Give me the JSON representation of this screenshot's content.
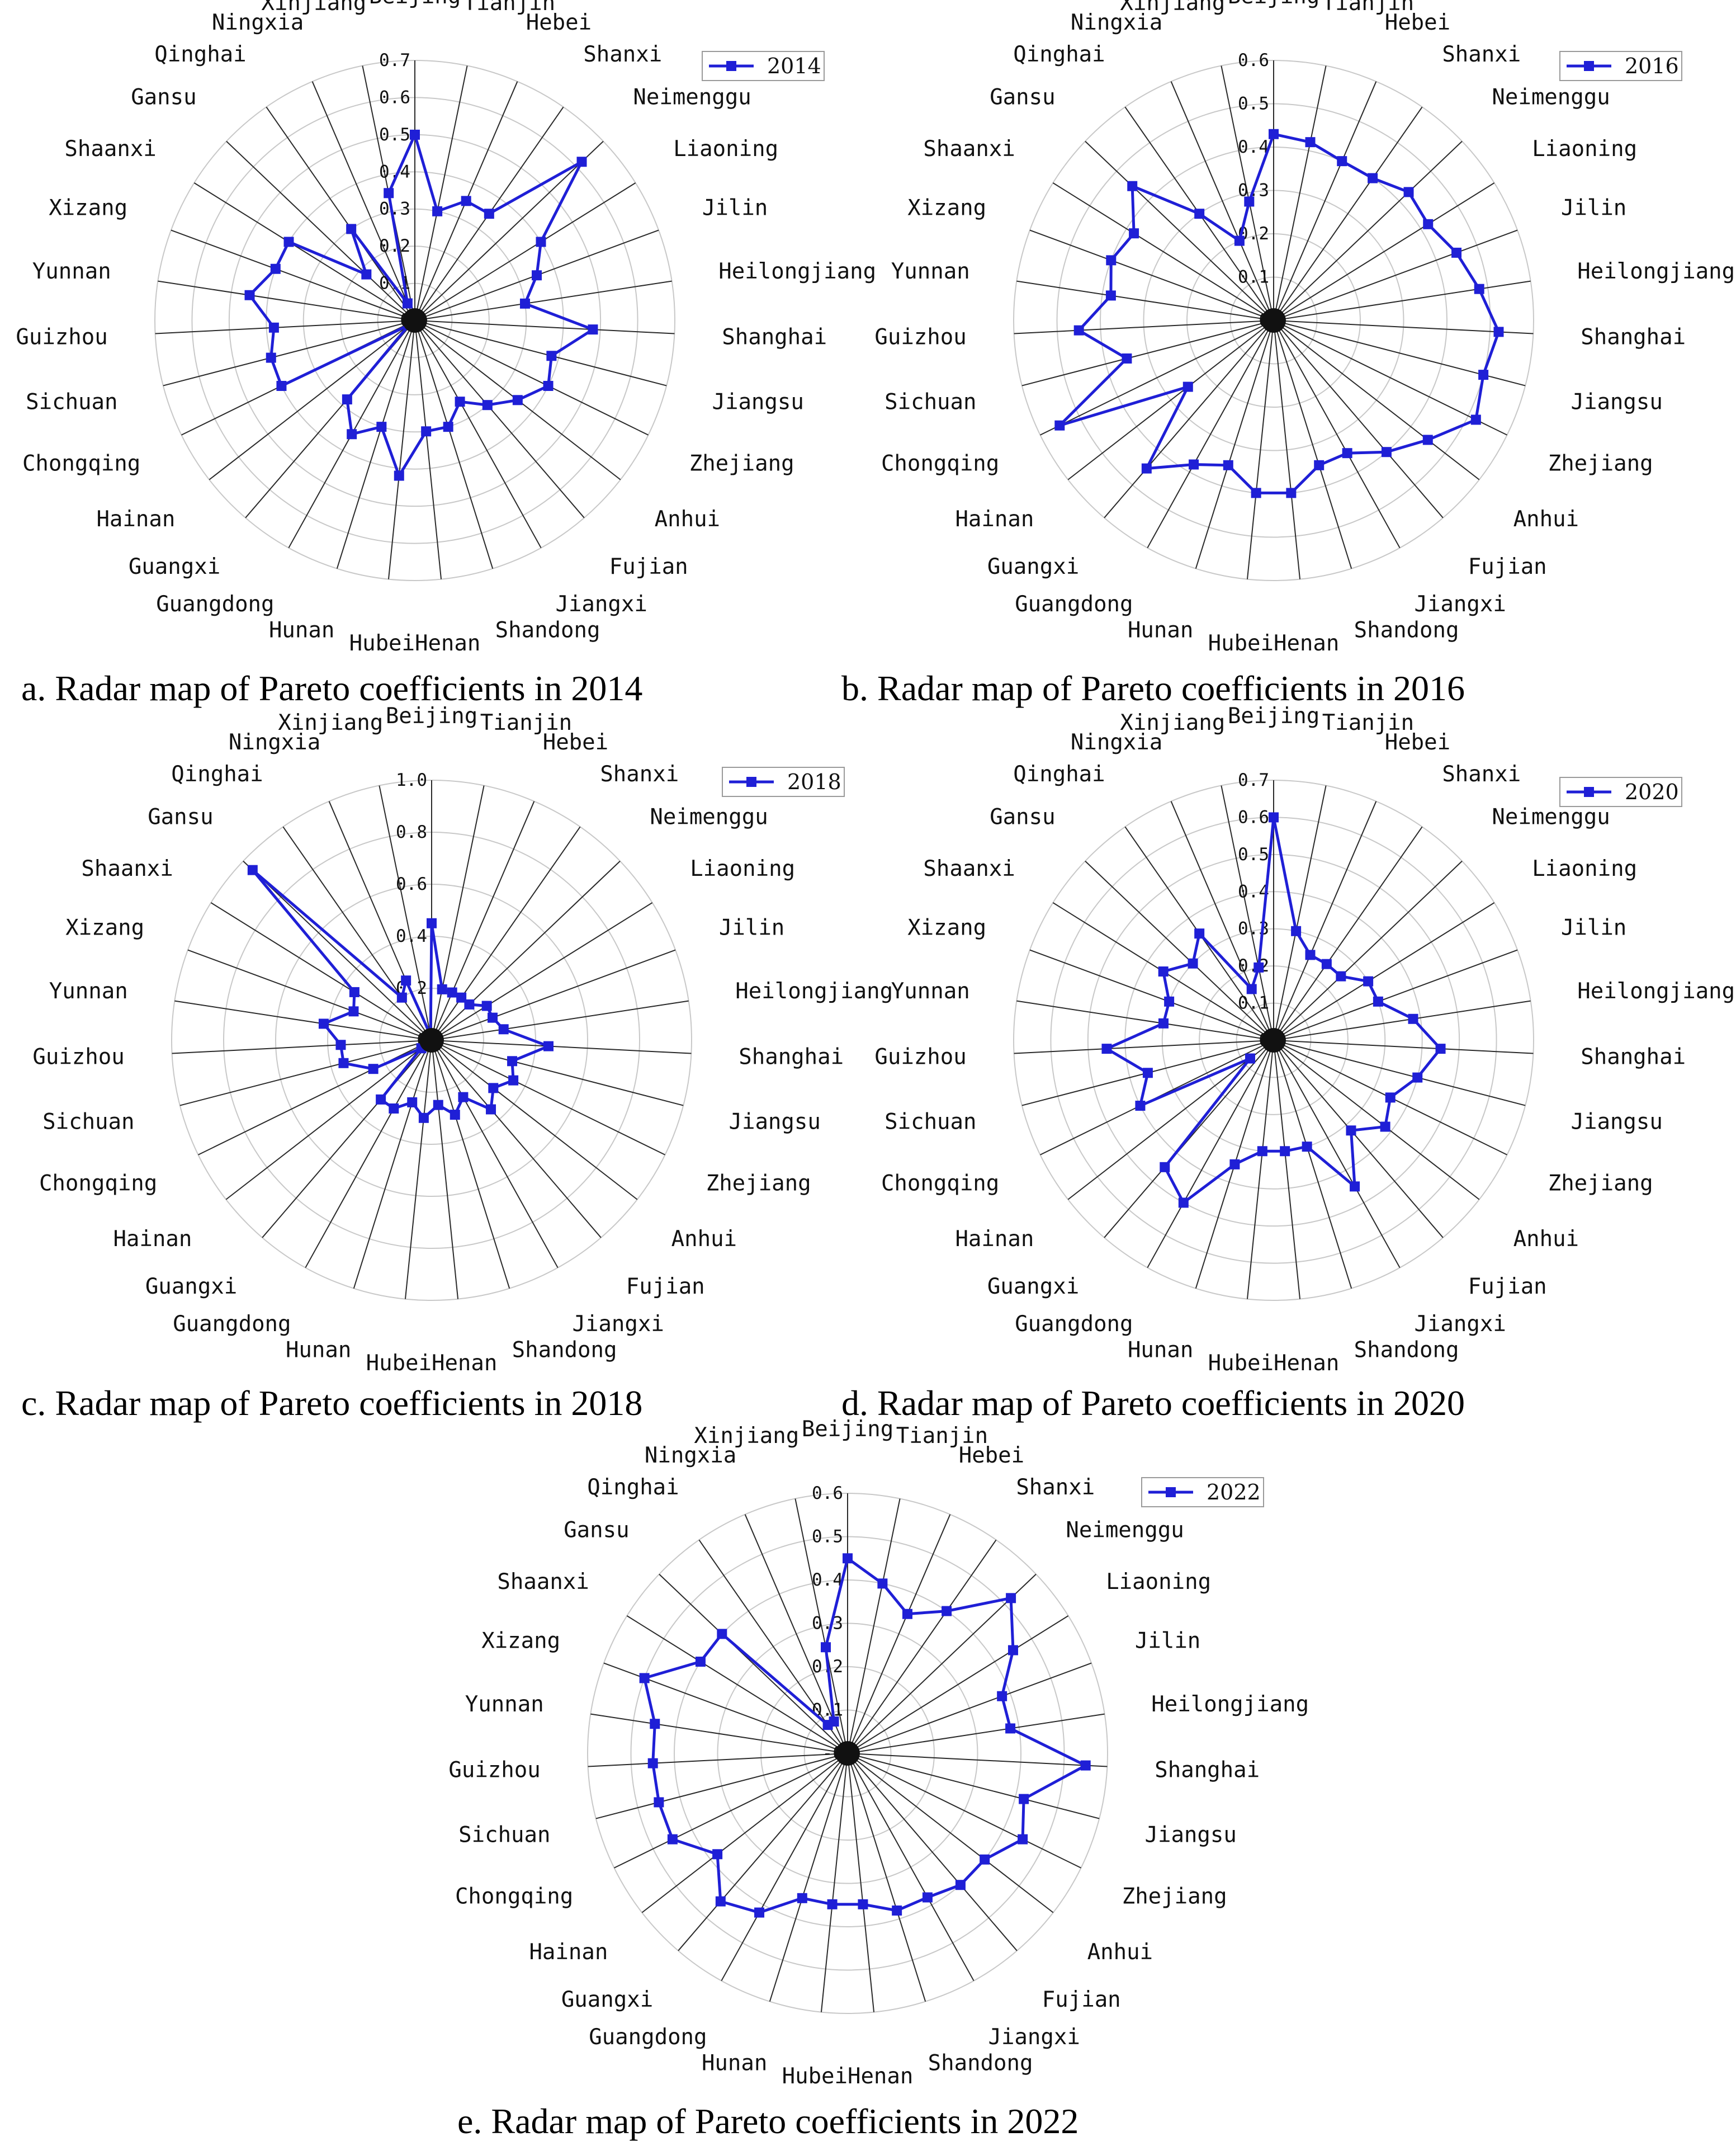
{
  "chart_data": [
    {
      "type": "radar",
      "panel": "a",
      "title": "a. Radar map of Pareto coefficients in 2014",
      "legend": "2014",
      "legend_position": "top-right",
      "series_color": "#1f1fd6",
      "rmax": 0.7,
      "ticks": [
        0,
        0.1,
        0.2,
        0.3,
        0.4,
        0.5,
        0.6,
        0.7
      ],
      "tick_labels": [
        "0",
        "0.1",
        "0.2",
        "0.3",
        "0.4",
        "0.5",
        "0.6",
        "0.7"
      ],
      "categories": [
        "Beijing",
        "Tianjin",
        "Hebei",
        "Shanxi",
        "Neimenggu",
        "Liaoning",
        "Jilin",
        "Heilongjiang",
        "Shanghai",
        "Jiangsu",
        "Zhejiang",
        "Anhui",
        "Fujian",
        "Jiangxi",
        "Shandong",
        "Henan",
        "Hubei",
        "Hunan",
        "Guangdong",
        "Guangxi",
        "Hainan",
        "Chongqing",
        "Sichuan",
        "Guizhou",
        "Yunnan",
        "Xizang",
        "Shaanxi",
        "Gansu",
        "Qinghai",
        "Ningxia",
        "Xinjiang"
      ],
      "values": [
        0.5,
        0.3,
        0.35,
        0.35,
        0.62,
        0.4,
        0.35,
        0.3,
        0.48,
        0.38,
        0.4,
        0.35,
        0.3,
        0.25,
        0.3,
        0.3,
        0.42,
        0.3,
        0.35,
        0.28,
        0.02,
        0.4,
        0.4,
        0.38,
        0.45,
        0.4,
        0.4,
        0.18,
        0.3,
        0.05,
        0.35
      ]
    },
    {
      "type": "radar",
      "panel": "b",
      "title": "b. Radar map of Pareto coefficients in 2016",
      "legend": "2016",
      "legend_position": "top-right",
      "series_color": "#1f1fd6",
      "rmax": 0.6,
      "ticks": [
        0,
        0.1,
        0.2,
        0.3,
        0.4,
        0.5,
        0.6
      ],
      "tick_labels": [
        "0",
        "0.1",
        "0.2",
        "0.3",
        "0.4",
        "0.5",
        "0.6"
      ],
      "categories": [
        "Beijing",
        "Tianjin",
        "Hebei",
        "Shanxi",
        "Neimenggu",
        "Liaoning",
        "Jilin",
        "Heilongjiang",
        "Shanghai",
        "Jiangsu",
        "Zhejiang",
        "Anhui",
        "Fujian",
        "Jiangxi",
        "Shandong",
        "Henan",
        "Hubei",
        "Hunan",
        "Guangdong",
        "Guangxi",
        "Hainan",
        "Chongqing",
        "Sichuan",
        "Guizhou",
        "Yunnan",
        "Xizang",
        "Shaanxi",
        "Gansu",
        "Qinghai",
        "Ningxia",
        "Xinjiang"
      ],
      "values": [
        0.43,
        0.42,
        0.4,
        0.4,
        0.43,
        0.42,
        0.45,
        0.48,
        0.52,
        0.5,
        0.52,
        0.45,
        0.4,
        0.35,
        0.35,
        0.4,
        0.4,
        0.35,
        0.38,
        0.45,
        0.25,
        0.55,
        0.35,
        0.45,
        0.38,
        0.4,
        0.38,
        0.45,
        0.3,
        0.2,
        0.28
      ]
    },
    {
      "type": "radar",
      "panel": "c",
      "title": "c. Radar map of Pareto coefficients in 2018",
      "legend": "2018",
      "legend_position": "top-right",
      "series_color": "#1f1fd6",
      "rmax": 1.0,
      "ticks": [
        0,
        0.2,
        0.4,
        0.6,
        0.8,
        1.0
      ],
      "tick_labels": [
        "0",
        "0.2",
        "0.4",
        "0.6",
        "0.8",
        "1.0"
      ],
      "categories": [
        "Beijing",
        "Tianjin",
        "Hebei",
        "Shanxi",
        "Neimenggu",
        "Liaoning",
        "Jilin",
        "Heilongjiang",
        "Shanghai",
        "Jiangsu",
        "Zhejiang",
        "Anhui",
        "Fujian",
        "Jiangxi",
        "Shandong",
        "Henan",
        "Hubei",
        "Hunan",
        "Guangdong",
        "Guangxi",
        "Hainan",
        "Chongqing",
        "Sichuan",
        "Guizhou",
        "Yunnan",
        "Xizang",
        "Shaanxi",
        "Gansu",
        "Qinghai",
        "Ningxia",
        "Xinjiang"
      ],
      "values": [
        0.45,
        0.2,
        0.2,
        0.2,
        0.2,
        0.25,
        0.25,
        0.28,
        0.45,
        0.32,
        0.35,
        0.3,
        0.35,
        0.25,
        0.3,
        0.25,
        0.3,
        0.25,
        0.3,
        0.3,
        0.05,
        0.25,
        0.35,
        0.35,
        0.42,
        0.32,
        0.35,
        0.95,
        0.2,
        0.25,
        0.02
      ]
    },
    {
      "type": "radar",
      "panel": "d",
      "title": "d. Radar map of Pareto coefficients in 2020",
      "legend": "2020",
      "legend_position": "top-right",
      "series_color": "#1f1fd6",
      "rmax": 0.7,
      "ticks": [
        0,
        0.1,
        0.2,
        0.3,
        0.4,
        0.5,
        0.6,
        0.7
      ],
      "tick_labels": [
        "0",
        "0.1",
        "0.2",
        "0.3",
        "0.4",
        "0.5",
        "0.6",
        "0.7"
      ],
      "categories": [
        "Beijing",
        "Tianjin",
        "Hebei",
        "Shanxi",
        "Neimenggu",
        "Liaoning",
        "Jilin",
        "Heilongjiang",
        "Shanghai",
        "Jiangsu",
        "Zhejiang",
        "Anhui",
        "Fujian",
        "Jiangxi",
        "Shandong",
        "Henan",
        "Hubei",
        "Hunan",
        "Guangdong",
        "Guangxi",
        "Hainan",
        "Chongqing",
        "Sichuan",
        "Guizhou",
        "Yunnan",
        "Xizang",
        "Shaanxi",
        "Gansu",
        "Qinghai",
        "Ningxia",
        "Xinjiang"
      ],
      "values": [
        0.6,
        0.3,
        0.25,
        0.25,
        0.25,
        0.3,
        0.3,
        0.38,
        0.45,
        0.4,
        0.35,
        0.38,
        0.32,
        0.45,
        0.3,
        0.3,
        0.3,
        0.35,
        0.5,
        0.45,
        0.08,
        0.4,
        0.35,
        0.45,
        0.3,
        0.3,
        0.35,
        0.3,
        0.35,
        0.15,
        0.2
      ]
    },
    {
      "type": "radar",
      "panel": "e",
      "title": "e. Radar map of Pareto coefficients in 2022",
      "legend": "2022",
      "legend_position": "top-right",
      "series_color": "#1f1fd6",
      "rmax": 0.6,
      "ticks": [
        0,
        0.1,
        0.2,
        0.3,
        0.4,
        0.5,
        0.6
      ],
      "tick_labels": [
        "-0",
        "0.1",
        "0.2",
        "0.3",
        "0.4",
        "0.5",
        "0.6"
      ],
      "categories": [
        "Beijing",
        "Tianjin",
        "Hebei",
        "Shanxi",
        "Neimenggu",
        "Liaoning",
        "Jilin",
        "Heilongjiang",
        "Shanghai",
        "Jiangsu",
        "Zhejiang",
        "Anhui",
        "Fujian",
        "Jiangxi",
        "Shandong",
        "Henan",
        "Hubei",
        "Hunan",
        "Guangdong",
        "Guangxi",
        "Hainan",
        "Chongqing",
        "Sichuan",
        "Guizhou",
        "Yunnan",
        "Xizang",
        "Shaanxi",
        "Gansu",
        "Qinghai",
        "Ningxia",
        "Xinjiang"
      ],
      "values": [
        0.45,
        0.4,
        0.35,
        0.4,
        0.52,
        0.45,
        0.38,
        0.38,
        0.55,
        0.42,
        0.45,
        0.4,
        0.4,
        0.38,
        0.38,
        0.35,
        0.35,
        0.35,
        0.42,
        0.45,
        0.38,
        0.45,
        0.45,
        0.45,
        0.45,
        0.5,
        0.4,
        0.4,
        0.08,
        0.08,
        0.25
      ]
    }
  ]
}
